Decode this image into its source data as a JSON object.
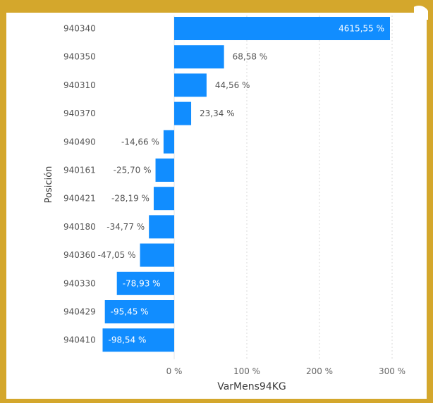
{
  "chart_data": {
    "type": "bar",
    "orientation": "horizontal",
    "categories": [
      "940340",
      "940350",
      "940310",
      "940370",
      "940490",
      "940161",
      "940421",
      "940180",
      "940360",
      "940330",
      "940429",
      "940410"
    ],
    "values": [
      4615.55,
      68.58,
      44.56,
      23.34,
      -14.66,
      -25.7,
      -28.19,
      -34.77,
      -47.05,
      -78.93,
      -95.45,
      -98.54
    ],
    "data_labels": [
      "4615,55 %",
      "68,58 %",
      "44,56 %",
      "23,34 %",
      "-14,66 %",
      "-25,70 %",
      "-28,19 %",
      "-34,77 %",
      "-47,05 %",
      "-78,93 %",
      "-95,45 %",
      "-98,54 %"
    ],
    "xlabel": "VarMens94KG",
    "ylabel": "Posición",
    "xlim": [
      -100,
      300
    ],
    "x_ticks": [
      0,
      100,
      200,
      300
    ],
    "x_tick_labels": [
      "0 %",
      "100 %",
      "200 %",
      "300 %"
    ],
    "grid": "vertical-dotted",
    "bar_color": "#118DFF",
    "frame_color": "#D4A72C"
  }
}
